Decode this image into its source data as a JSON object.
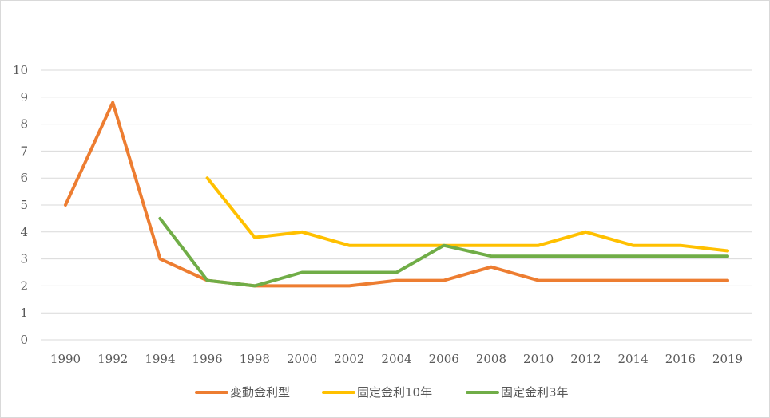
{
  "chart_data": {
    "type": "line",
    "title": "",
    "xlabel": "",
    "ylabel": "",
    "ylim": [
      0,
      10
    ],
    "y_ticks": [
      0,
      1,
      2,
      3,
      4,
      5,
      6,
      7,
      8,
      9,
      10
    ],
    "categories": [
      "1990",
      "1992",
      "1994",
      "1996",
      "1998",
      "2000",
      "2002",
      "2004",
      "2006",
      "2008",
      "2010",
      "2012",
      "2014",
      "2016",
      "2019"
    ],
    "grid": true,
    "legend_position": "bottom",
    "series": [
      {
        "name": "変動金利型",
        "color": "#ED7D31",
        "values": [
          5.0,
          8.8,
          3.0,
          2.2,
          2.0,
          2.0,
          2.0,
          2.2,
          2.2,
          2.7,
          2.2,
          2.2,
          2.2,
          2.2,
          2.2
        ]
      },
      {
        "name": "固定金利10年",
        "color": "#FFC000",
        "values": [
          null,
          null,
          null,
          6.0,
          3.8,
          4.0,
          3.5,
          3.5,
          3.5,
          3.5,
          3.5,
          4.0,
          3.5,
          3.5,
          3.3
        ]
      },
      {
        "name": "固定金利3年",
        "color": "#70AD47",
        "values": [
          null,
          null,
          4.5,
          2.2,
          2.0,
          2.5,
          2.5,
          2.5,
          3.5,
          3.1,
          3.1,
          3.1,
          3.1,
          3.1,
          3.1
        ]
      }
    ]
  }
}
